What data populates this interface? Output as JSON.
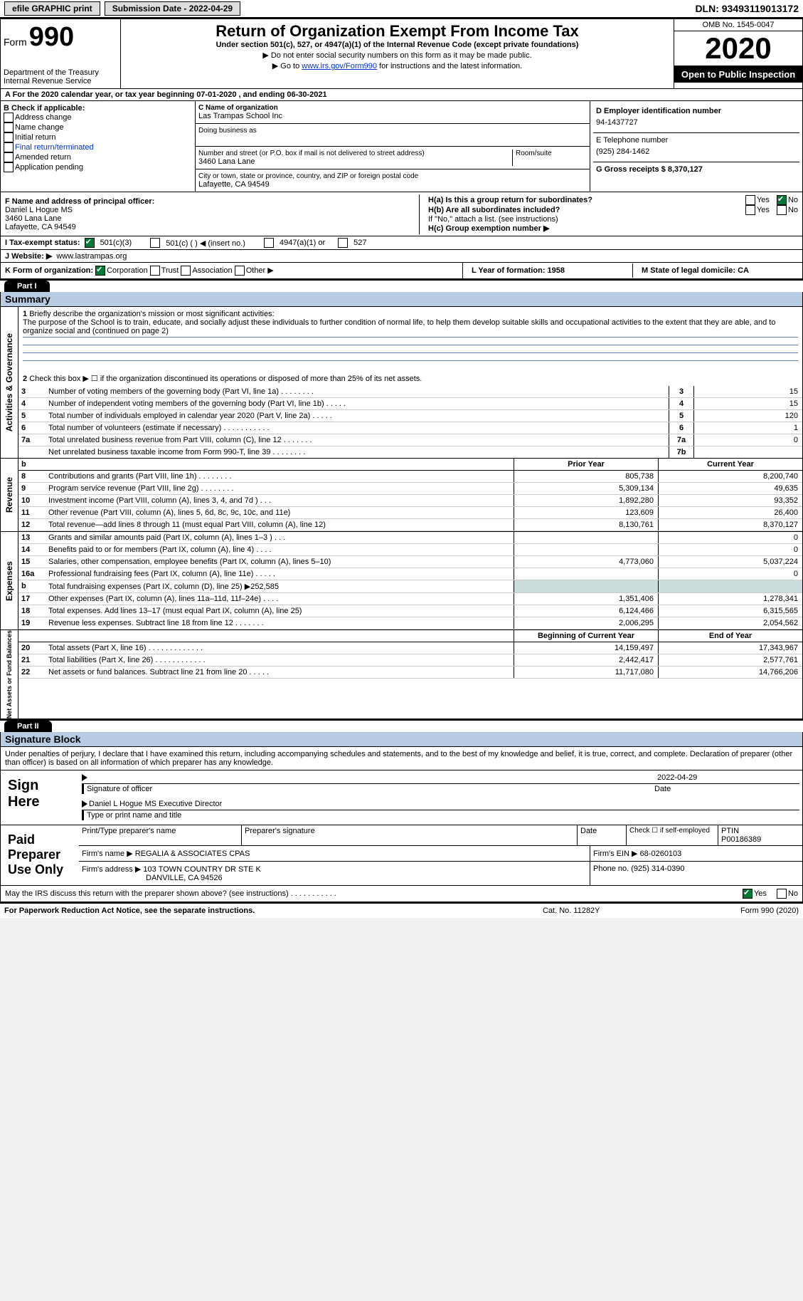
{
  "topbar": {
    "efile": "efile GRAPHIC print",
    "submission_label": "Submission Date - 2022-04-29",
    "dln_label": "DLN: 93493119013172"
  },
  "header": {
    "form_word": "Form",
    "form_no": "990",
    "dept": "Department of the Treasury Internal Revenue Service",
    "title": "Return of Organization Exempt From Income Tax",
    "sub": "Under section 501(c), 527, or 4947(a)(1) of the Internal Revenue Code (except private foundations)",
    "line1": "▶ Do not enter social security numbers on this form as it may be made public.",
    "line2_pre": "▶ Go to ",
    "line2_link": "www.irs.gov/Form990",
    "line2_post": " for instructions and the latest information.",
    "omb": "OMB No. 1545-0047",
    "year": "2020",
    "open": "Open to Public Inspection"
  },
  "row_a": "A For the 2020 calendar year, or tax year beginning 07-01-2020  , and ending 06-30-2021",
  "box_b": {
    "title": "B Check if applicable:",
    "opts": [
      "Address change",
      "Name change",
      "Initial return",
      "Final return/terminated",
      "Amended return",
      "Application pending"
    ]
  },
  "box_c": {
    "name_label": "C Name of organization",
    "name_val": "Las Trampas School Inc",
    "dba_label": "Doing business as",
    "addr_label": "Number and street (or P.O. box if mail is not delivered to street address)",
    "addr_val": "3460 Lana Lane",
    "room_label": "Room/suite",
    "city_label": "City or town, state or province, country, and ZIP or foreign postal code",
    "city_val": "Lafayette, CA  94549"
  },
  "box_d": {
    "label": "D Employer identification number",
    "val": "94-1437727"
  },
  "box_e": {
    "label": "E Telephone number",
    "val": "(925) 284-1462"
  },
  "box_g": {
    "label": "G Gross receipts $ 8,370,127"
  },
  "box_f": {
    "label": "F  Name and address of principal officer:",
    "v1": "Daniel L Hogue MS",
    "v2": "3460 Lana Lane",
    "v3": "Lafayette, CA  94549"
  },
  "box_h": {
    "a": "H(a)  Is this a group return for subordinates?",
    "b": "H(b)  Are all subordinates included?",
    "note": "If \"No,\" attach a list. (see instructions)",
    "c": "H(c)  Group exemption number ▶",
    "yes": "Yes",
    "no": "No"
  },
  "row_i": {
    "label": "I  Tax-exempt status:",
    "o1": "501(c)(3)",
    "o2": "501(c) (  ) ◀ (insert no.)",
    "o3": "4947(a)(1) or",
    "o4": "527"
  },
  "row_j": {
    "label": "J  Website: ▶",
    "val": "www.lastrampas.org"
  },
  "row_k": {
    "label": "K Form of organization:",
    "o1": "Corporation",
    "o2": "Trust",
    "o3": "Association",
    "o4": "Other ▶"
  },
  "row_lm": {
    "l": "L Year of formation: 1958",
    "m": "M State of legal domicile: CA"
  },
  "part1": {
    "hdr": "Part I",
    "title": "Summary"
  },
  "gov": {
    "side": "Activities & Governance",
    "l1_num": "1",
    "l1": "Briefly describe the organization's mission or most significant activities:",
    "l1_text": "The purpose of the School is to train, educate, and socially adjust these individuals to further condition of normal life, to help them develop suitable skills and occupational activities to the extent that they are able, and to organize social and (continued on page 2)",
    "l2_num": "2",
    "l2": "Check this box ▶ ☐ if the organization discontinued its operations or disposed of more than 25% of its net assets.",
    "rows": [
      {
        "n": "3",
        "t": "Number of voting members of the governing body (Part VI, line 1a)   .   .   .   .   .   .   .   .",
        "box": "3",
        "v": "15"
      },
      {
        "n": "4",
        "t": "Number of independent voting members of the governing body (Part VI, line 1b)   .   .   .   .   .",
        "box": "4",
        "v": "15"
      },
      {
        "n": "5",
        "t": "Total number of individuals employed in calendar year 2020 (Part V, line 2a)   .   .   .   .   .",
        "box": "5",
        "v": "120"
      },
      {
        "n": "6",
        "t": "Total number of volunteers (estimate if necessary)   .   .   .   .   .   .   .   .   .   .   .",
        "box": "6",
        "v": "1"
      },
      {
        "n": "7a",
        "t": "Total unrelated business revenue from Part VIII, column (C), line 12   .   .   .   .   .   .   .",
        "box": "7a",
        "v": "0"
      },
      {
        "n": " ",
        "t": "Net unrelated business taxable income from Form 990-T, line 39   .   .   .   .   .   .   .   .",
        "box": "7b",
        "v": ""
      }
    ]
  },
  "fin_headers": {
    "b": "b",
    "prior": "Prior Year",
    "curr": "Current Year"
  },
  "revenue": {
    "side": "Revenue",
    "rows": [
      {
        "n": "8",
        "t": "Contributions and grants (Part VIII, line 1h)   .   .   .   .   .   .   .   .",
        "p": "805,738",
        "c": "8,200,740"
      },
      {
        "n": "9",
        "t": "Program service revenue (Part VIII, line 2g)   .   .   .   .   .   .   .   .",
        "p": "5,309,134",
        "c": "49,635"
      },
      {
        "n": "10",
        "t": "Investment income (Part VIII, column (A), lines 3, 4, and 7d )   .   .   .",
        "p": "1,892,280",
        "c": "93,352"
      },
      {
        "n": "11",
        "t": "Other revenue (Part VIII, column (A), lines 5, 6d, 8c, 9c, 10c, and 11e)",
        "p": "123,609",
        "c": "26,400"
      },
      {
        "n": "12",
        "t": "Total revenue—add lines 8 through 11 (must equal Part VIII, column (A), line 12)",
        "p": "8,130,761",
        "c": "8,370,127"
      }
    ]
  },
  "expenses": {
    "side": "Expenses",
    "rows": [
      {
        "n": "13",
        "t": "Grants and similar amounts paid (Part IX, column (A), lines 1–3 )   .   .   .",
        "p": "",
        "c": "0"
      },
      {
        "n": "14",
        "t": "Benefits paid to or for members (Part IX, column (A), line 4)   .   .   .   .",
        "p": "",
        "c": "0"
      },
      {
        "n": "15",
        "t": "Salaries, other compensation, employee benefits (Part IX, column (A), lines 5–10)",
        "p": "4,773,060",
        "c": "5,037,224"
      },
      {
        "n": "16a",
        "t": "Professional fundraising fees (Part IX, column (A), line 11e)   .   .   .   .   .",
        "p": "",
        "c": "0"
      },
      {
        "n": "b",
        "t": "Total fundraising expenses (Part IX, column (D), line 25) ▶252,585",
        "p": "shade",
        "c": "shade"
      },
      {
        "n": "17",
        "t": "Other expenses (Part IX, column (A), lines 11a–11d, 11f–24e)   .   .   .   .",
        "p": "1,351,406",
        "c": "1,278,341"
      },
      {
        "n": "18",
        "t": "Total expenses. Add lines 13–17 (must equal Part IX, column (A), line 25)",
        "p": "6,124,466",
        "c": "6,315,565"
      },
      {
        "n": "19",
        "t": "Revenue less expenses. Subtract line 18 from line 12   .   .   .   .   .   .   .",
        "p": "2,006,295",
        "c": "2,054,562"
      }
    ]
  },
  "netassets": {
    "side": "Net Assets or Fund Balances",
    "head_p": "Beginning of Current Year",
    "head_c": "End of Year",
    "rows": [
      {
        "n": "20",
        "t": "Total assets (Part X, line 16)   .   .   .   .   .   .   .   .   .   .   .   .   .",
        "p": "14,159,497",
        "c": "17,343,967"
      },
      {
        "n": "21",
        "t": "Total liabilities (Part X, line 26)   .   .   .   .   .   .   .   .   .   .   .   .",
        "p": "2,442,417",
        "c": "2,577,761"
      },
      {
        "n": "22",
        "t": "Net assets or fund balances. Subtract line 21 from line 20   .   .   .   .   .",
        "p": "11,717,080",
        "c": "14,766,206"
      }
    ]
  },
  "part2": {
    "hdr": "Part II",
    "title": "Signature Block"
  },
  "sig": {
    "decl": "Under penalties of perjury, I declare that I have examined this return, including accompanying schedules and statements, and to the best of my knowledge and belief, it is true, correct, and complete. Declaration of preparer (other than officer) is based on all information of which preparer has any knowledge.",
    "sign_here": "Sign Here",
    "date": "2022-04-29",
    "sig_of": "Signature of officer",
    "date_lbl": "Date",
    "name_title": "Daniel L Hogue MS  Executive Director",
    "type_lbl": "Type or print name and title",
    "paid": "Paid Preparer Use Only",
    "pr_name_lbl": "Print/Type preparer's name",
    "pr_sig_lbl": "Preparer's signature",
    "pr_date_lbl": "Date",
    "check_lbl": "Check ☐ if self-employed",
    "ptin_lbl": "PTIN",
    "ptin": "P00186389",
    "firm_name_lbl": "Firm's name  ▶",
    "firm_name": "REGALIA & ASSOCIATES CPAS",
    "firm_ein_lbl": "Firm's EIN ▶",
    "firm_ein": "68-0260103",
    "firm_addr_lbl": "Firm's address ▶",
    "firm_addr": "103 TOWN COUNTRY DR STE K",
    "firm_city": "DANVILLE, CA  94526",
    "phone_lbl": "Phone no.",
    "phone": "(925) 314-0390",
    "discuss": "May the IRS discuss this return with the preparer shown above? (see instructions)   .   .   .   .   .   .   .   .   .   .   .",
    "yes": "Yes",
    "no": "No"
  },
  "footer": {
    "left": "For Paperwork Reduction Act Notice, see the separate instructions.",
    "mid": "Cat. No. 11282Y",
    "right": "Form 990 (2020)"
  }
}
